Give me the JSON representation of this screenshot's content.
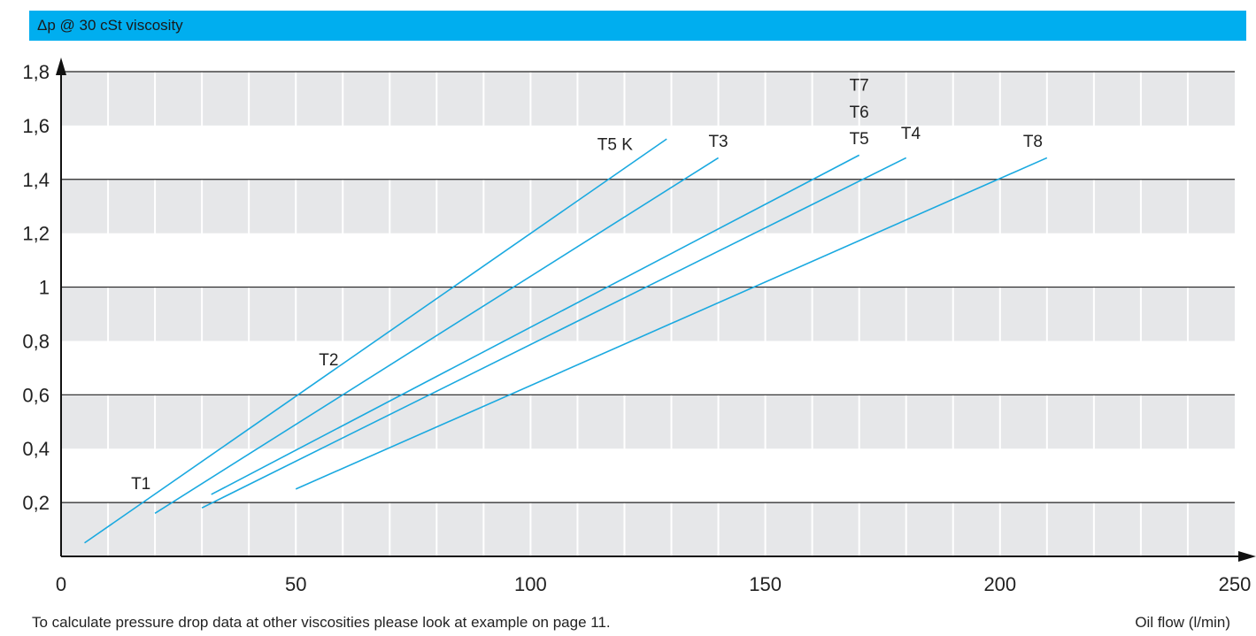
{
  "header": {
    "title": "Δp @ 30 cSt viscosity"
  },
  "footer": {
    "note": "To calculate pressure drop data at other viscosities please look at example on page 11.",
    "xlabel": "Oil flow (l/min)"
  },
  "colors": {
    "header_bg": "#00aeef",
    "series": "#1aa9e0",
    "band": "#e6e7e9",
    "grid": "#222222"
  },
  "chart_data": {
    "type": "line",
    "title": "Δp @ 30 cSt viscosity",
    "xlabel": "Oil flow (l/min)",
    "ylabel": "",
    "xlim": [
      0,
      250
    ],
    "ylim": [
      0,
      2.0
    ],
    "x_ticks": [
      "0",
      "50",
      "100",
      "150",
      "200",
      "250"
    ],
    "y_ticks": [
      {
        "value": 0.2,
        "label": "0,2"
      },
      {
        "value": 0.4,
        "label": "0,4"
      },
      {
        "value": 0.6,
        "label": "0,6"
      },
      {
        "value": 0.8,
        "label": "0,8"
      },
      {
        "value": 1.0,
        "label": "1"
      },
      {
        "value": 1.2,
        "label": "1,2"
      },
      {
        "value": 1.4,
        "label": "1,4"
      },
      {
        "value": 1.6,
        "label": "1,6"
      },
      {
        "value": 1.8,
        "label": "1,8"
      }
    ],
    "grid": true,
    "series": [
      {
        "name": "T5 K",
        "x": [
          5,
          129
        ],
        "y": [
          0.05,
          1.55
        ]
      },
      {
        "name": "T3",
        "x": [
          20,
          140
        ],
        "y": [
          0.16,
          1.48
        ]
      },
      {
        "name": "T5",
        "x": [
          32,
          170
        ],
        "y": [
          0.23,
          1.49
        ]
      },
      {
        "name": "T4",
        "x": [
          30,
          180
        ],
        "y": [
          0.18,
          1.48
        ]
      },
      {
        "name": "T8",
        "x": [
          50,
          210
        ],
        "y": [
          0.25,
          1.48
        ]
      }
    ],
    "annotations": [
      {
        "text": "T1",
        "x": 17,
        "y": 0.25
      },
      {
        "text": "T2",
        "x": 57,
        "y": 0.71
      },
      {
        "text": "T5 K",
        "x": 118,
        "y": 1.51
      },
      {
        "text": "T3",
        "x": 140,
        "y": 1.52
      },
      {
        "text": "T7",
        "x": 170,
        "y": 1.73
      },
      {
        "text": "T6",
        "x": 170,
        "y": 1.63
      },
      {
        "text": "T5",
        "x": 170,
        "y": 1.53
      },
      {
        "text": "T4",
        "x": 181,
        "y": 1.55
      },
      {
        "text": "T8",
        "x": 207,
        "y": 1.52
      }
    ]
  }
}
